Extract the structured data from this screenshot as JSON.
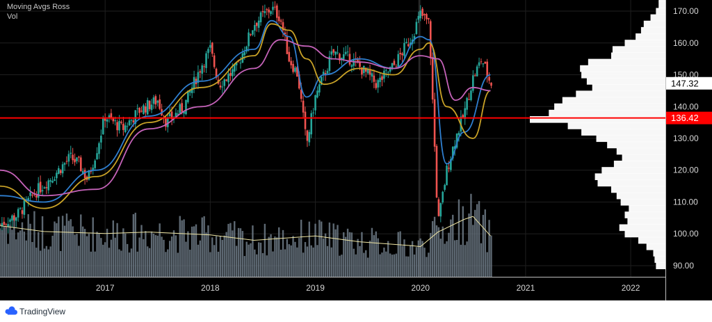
{
  "legend": {
    "title": "Moving Avgs Ross",
    "volume": "Vol"
  },
  "brand": {
    "name": "TradingView"
  },
  "chart_data": {
    "type": "candlestick",
    "x_axis": {
      "ticks": [
        "2017",
        "2018",
        "2019",
        "2020",
        "2021",
        "2022"
      ]
    },
    "y_axis": {
      "ticks": [
        "90.00",
        "100.00",
        "110.00",
        "120.00",
        "130.00",
        "140.00",
        "150.00",
        "160.00",
        "170.00"
      ],
      "range": [
        86.5,
        173.5
      ],
      "side": "right"
    },
    "price_labels": [
      {
        "label": "147.32",
        "value": 147.32,
        "color": "#ffffff",
        "text_color": "#000000"
      },
      {
        "label": "136.42",
        "value": 136.42,
        "color": "#ff0000",
        "text_color": "#ffffff"
      }
    ],
    "horizontal_line": {
      "value": 136.42,
      "color": "#ff0000"
    },
    "vertical_marker": {
      "date": "2019-12-27"
    },
    "price_path": [
      [
        "2016-01",
        103
      ],
      [
        "2016-03",
        106
      ],
      [
        "2016-05",
        113
      ],
      [
        "2016-07",
        118
      ],
      [
        "2016-09",
        124
      ],
      [
        "2016-10",
        122
      ],
      [
        "2016-11",
        117
      ],
      [
        "2016-12",
        126
      ],
      [
        "2017-01",
        137
      ],
      [
        "2017-03",
        133
      ],
      [
        "2017-05",
        139
      ],
      [
        "2017-07",
        142
      ],
      [
        "2017-08",
        135
      ],
      [
        "2017-10",
        140
      ],
      [
        "2017-12",
        153
      ],
      [
        "2018-01",
        158
      ],
      [
        "2018-02",
        147
      ],
      [
        "2018-04",
        152
      ],
      [
        "2018-06",
        166
      ],
      [
        "2018-08",
        171
      ],
      [
        "2018-09",
        168
      ],
      [
        "2018-10",
        155
      ],
      [
        "2018-11",
        150
      ],
      [
        "2018-12",
        128
      ],
      [
        "2019-01",
        143
      ],
      [
        "2019-03",
        157
      ],
      [
        "2019-05",
        155
      ],
      [
        "2019-07",
        150
      ],
      [
        "2019-08",
        147
      ],
      [
        "2019-10",
        153
      ],
      [
        "2019-12",
        162
      ],
      [
        "2020-01",
        169
      ],
      [
        "2020-02",
        166
      ],
      [
        "2020-03",
        103
      ],
      [
        "2020-04",
        120
      ],
      [
        "2020-05",
        130
      ],
      [
        "2020-06",
        138
      ],
      [
        "2020-07",
        149
      ],
      [
        "2020-08",
        155
      ],
      [
        "2020-09",
        147.32
      ]
    ],
    "series": [
      {
        "color": "#2f7fd0",
        "values": [
          [
            "2016-01",
            112
          ],
          [
            "2016-06",
            110
          ],
          [
            "2016-12",
            120
          ],
          [
            "2017-06",
            137
          ],
          [
            "2017-12",
            148
          ],
          [
            "2018-06",
            158
          ],
          [
            "2018-08",
            167
          ],
          [
            "2018-10",
            162
          ],
          [
            "2018-12",
            143
          ],
          [
            "2019-02",
            150
          ],
          [
            "2019-06",
            155
          ],
          [
            "2019-10",
            152
          ],
          [
            "2020-01",
            162
          ],
          [
            "2020-02",
            161
          ],
          [
            "2020-04",
            122
          ],
          [
            "2020-06",
            132
          ],
          [
            "2020-09",
            150
          ]
        ]
      },
      {
        "color": "#c9a227",
        "values": [
          [
            "2016-01",
            115
          ],
          [
            "2016-06",
            108
          ],
          [
            "2016-12",
            118
          ],
          [
            "2017-06",
            135
          ],
          [
            "2017-12",
            146
          ],
          [
            "2018-06",
            156
          ],
          [
            "2018-08",
            166
          ],
          [
            "2018-10",
            164
          ],
          [
            "2018-12",
            155
          ],
          [
            "2019-02",
            147
          ],
          [
            "2019-06",
            152
          ],
          [
            "2019-10",
            150
          ],
          [
            "2020-01",
            158
          ],
          [
            "2020-02",
            160
          ],
          [
            "2020-04",
            140
          ],
          [
            "2020-07",
            130
          ],
          [
            "2020-09",
            145
          ]
        ]
      },
      {
        "color": "#c462b8",
        "values": [
          [
            "2016-01",
            120
          ],
          [
            "2016-06",
            112
          ],
          [
            "2016-12",
            114
          ],
          [
            "2017-06",
            133
          ],
          [
            "2017-12",
            140
          ],
          [
            "2018-06",
            152
          ],
          [
            "2018-09",
            161
          ],
          [
            "2018-12",
            159
          ],
          [
            "2019-03",
            155
          ],
          [
            "2019-06",
            154
          ],
          [
            "2019-10",
            152
          ],
          [
            "2020-01",
            156
          ],
          [
            "2020-03",
            155
          ],
          [
            "2020-05",
            142
          ],
          [
            "2020-07",
            146
          ],
          [
            "2020-09",
            145
          ]
        ]
      }
    ],
    "volume_average": [
      [
        "2016-01",
        10.5
      ],
      [
        "2016-06",
        9.3
      ],
      [
        "2017-01",
        8.9
      ],
      [
        "2017-06",
        9.2
      ],
      [
        "2018-01",
        8.6
      ],
      [
        "2018-06",
        7.5
      ],
      [
        "2019-01",
        8.4
      ],
      [
        "2019-06",
        7.2
      ],
      [
        "2019-12",
        6.4
      ],
      [
        "2020-01",
        6.2
      ],
      [
        "2020-03",
        9.2
      ],
      [
        "2020-06",
        11.8
      ],
      [
        "2020-07",
        12.4
      ],
      [
        "2020-09",
        8.4
      ]
    ],
    "volume_profile": [
      [
        90,
        0.07
      ],
      [
        92,
        0.08
      ],
      [
        94,
        0.09
      ],
      [
        96,
        0.14
      ],
      [
        98,
        0.2
      ],
      [
        100,
        0.3
      ],
      [
        102,
        0.34
      ],
      [
        104,
        0.28
      ],
      [
        106,
        0.3
      ],
      [
        108,
        0.27
      ],
      [
        110,
        0.33
      ],
      [
        112,
        0.36
      ],
      [
        114,
        0.4
      ],
      [
        116,
        0.5
      ],
      [
        118,
        0.52
      ],
      [
        120,
        0.47
      ],
      [
        122,
        0.38
      ],
      [
        124,
        0.32
      ],
      [
        126,
        0.36
      ],
      [
        128,
        0.43
      ],
      [
        130,
        0.51
      ],
      [
        132,
        0.62
      ],
      [
        134,
        0.72
      ],
      [
        136,
        1.0
      ],
      [
        138,
        0.86
      ],
      [
        140,
        0.82
      ],
      [
        142,
        0.76
      ],
      [
        144,
        0.66
      ],
      [
        146,
        0.54
      ],
      [
        148,
        0.58
      ],
      [
        150,
        0.62
      ],
      [
        152,
        0.63
      ],
      [
        154,
        0.57
      ],
      [
        156,
        0.4
      ],
      [
        158,
        0.39
      ],
      [
        160,
        0.3
      ],
      [
        162,
        0.22
      ],
      [
        164,
        0.18
      ],
      [
        166,
        0.16
      ],
      [
        168,
        0.11
      ],
      [
        170,
        0.07
      ],
      [
        172,
        0.05
      ],
      [
        174,
        0.05
      ]
    ],
    "grid": true,
    "colors": {
      "up": "#26a69a",
      "down": "#ef5350",
      "background": "#000000"
    }
  }
}
